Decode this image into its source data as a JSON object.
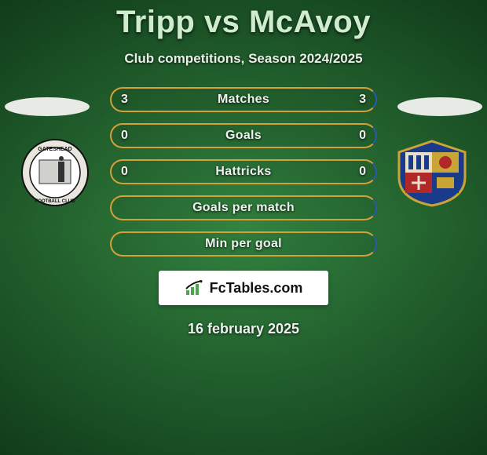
{
  "title": "Tripp vs McAvoy",
  "subtitle": "Club competitions, Season 2024/2025",
  "colors": {
    "bar_border_yellow": "#d6a038",
    "bar_border_blue": "#2a5aa8",
    "bar_fill": "rgba(0,0,0,0.05)"
  },
  "bars": [
    {
      "label": "Matches",
      "left": "3",
      "right": "3",
      "left_color": "#d6a038",
      "right_color": "#2a5aa8"
    },
    {
      "label": "Goals",
      "left": "0",
      "right": "0",
      "left_color": "#d6a038",
      "right_color": "#2a5aa8"
    },
    {
      "label": "Hattricks",
      "left": "0",
      "right": "0",
      "left_color": "#d6a038",
      "right_color": "#2a5aa8"
    },
    {
      "label": "Goals per match",
      "left": "",
      "right": "",
      "left_color": "#d6a038",
      "right_color": "#2a5aa8"
    },
    {
      "label": "Min per goal",
      "left": "",
      "right": "",
      "left_color": "#d6a038",
      "right_color": "#2a5aa8"
    }
  ],
  "logo_text": "FcTables.com",
  "date": "16 february 2025",
  "crest_left_name": "gateshead-crest",
  "crest_right_name": "wealdstone-crest"
}
